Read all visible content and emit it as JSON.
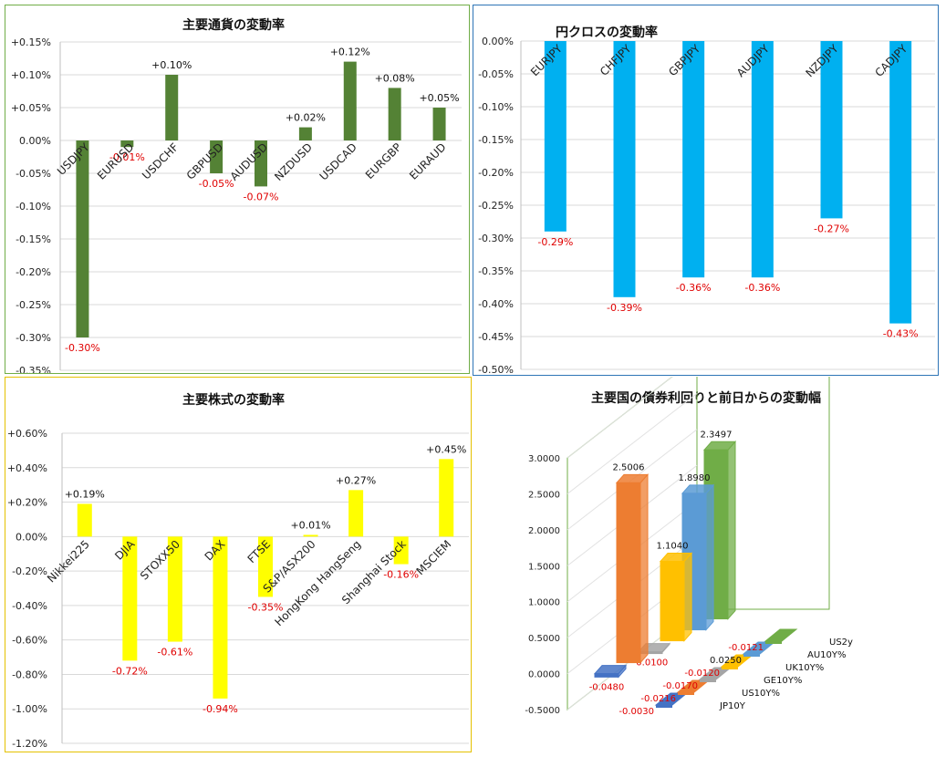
{
  "chart_data": [
    {
      "id": "fx",
      "type": "bar",
      "title": "主要通貨の変動率",
      "categories": [
        "USDJPY",
        "EURUSD",
        "USDCHF",
        "GBPUSD",
        "AUDUSD",
        "NZDUSD",
        "USDCAD",
        "EURGBP",
        "EURAUD"
      ],
      "values": [
        -0.3,
        -0.01,
        0.1,
        -0.05,
        -0.07,
        0.02,
        0.12,
        0.08,
        0.05
      ],
      "data_labels": [
        "-0.30%",
        "-0.01%",
        "+0.10%",
        "-0.05%",
        "-0.07%",
        "+0.02%",
        "+0.12%",
        "+0.08%",
        "+0.05%"
      ],
      "ylim": [
        -0.35,
        0.15
      ],
      "yticks": [
        "+0.15%",
        "+0.10%",
        "+0.05%",
        "0.00%",
        "-0.05%",
        "-0.10%",
        "-0.15%",
        "-0.20%",
        "-0.25%",
        "-0.30%",
        "-0.35%"
      ],
      "grid": true,
      "color": "#548235",
      "border_color": "#548235"
    },
    {
      "id": "yen",
      "type": "bar",
      "title": "円クロスの変動率",
      "categories": [
        "EURJPY",
        "CHFJPY",
        "GBPJPY",
        "AUDJPY",
        "NZDJPY",
        "CADJPY"
      ],
      "values": [
        -0.29,
        -0.39,
        -0.36,
        -0.36,
        -0.27,
        -0.43
      ],
      "data_labels": [
        "-0.29%",
        "-0.39%",
        "-0.36%",
        "-0.36%",
        "-0.27%",
        "-0.43%"
      ],
      "ylim": [
        -0.5,
        0.0
      ],
      "yticks": [
        "0.00%",
        "-0.05%",
        "-0.10%",
        "-0.15%",
        "-0.20%",
        "-0.25%",
        "-0.30%",
        "-0.35%",
        "-0.40%",
        "-0.45%",
        "-0.50%"
      ],
      "grid": true,
      "color": "#00b0f0",
      "border_color": "#2e75b6"
    },
    {
      "id": "stock",
      "type": "bar",
      "title": "主要株式の変動率",
      "categories": [
        "Nikkei225",
        "DJIA",
        "STOXX50",
        "DAX",
        "FTSE",
        "S&P/ASX200",
        "HongKong HangSeng",
        "Shanghai Stock",
        "MSCIEM"
      ],
      "values": [
        0.19,
        -0.72,
        -0.61,
        -0.94,
        -0.35,
        0.01,
        0.27,
        -0.16,
        0.45
      ],
      "data_labels": [
        "+0.19%",
        "-0.72%",
        "-0.61%",
        "-0.94%",
        "-0.35%",
        "+0.01%",
        "+0.27%",
        "-0.16%",
        "+0.45%"
      ],
      "ylim": [
        -1.2,
        0.6
      ],
      "yticks": [
        "+0.60%",
        "+0.40%",
        "+0.20%",
        "0.00%",
        "-0.20%",
        "-0.40%",
        "-0.60%",
        "-0.80%",
        "-1.00%",
        "-1.20%"
      ],
      "grid": true,
      "color": "#ffff00",
      "border_color": "#e5c100"
    },
    {
      "id": "bonds",
      "type": "bar",
      "title": "主要国の債券利回りと前日からの変動幅",
      "series": [
        {
          "name": "JP10Y",
          "level": -0.048,
          "level_label": "-0.0480",
          "change": -0.003,
          "change_label": "-0.0030",
          "color": "#4472c4"
        },
        {
          "name": "US10Y%",
          "level": 2.5006,
          "level_label": "2.5006",
          "change": -0.0216,
          "change_label": "-0.0216",
          "color": "#ed7d31"
        },
        {
          "name": "GE10Y%",
          "level": -0.01,
          "level_label": "-0.0100",
          "change": -0.017,
          "change_label": "-0.0170",
          "color": "#a5a5a5"
        },
        {
          "name": "UK10Y%",
          "level": 1.104,
          "level_label": "1.1040",
          "change": -0.012,
          "change_label": "-0.0120",
          "color": "#ffc000"
        },
        {
          "name": "AU10Y%",
          "level": 1.898,
          "level_label": "1.8980",
          "change": 0.025,
          "change_label": "0.0250",
          "color": "#5b9bd5"
        },
        {
          "name": "US2y",
          "level": 2.3497,
          "level_label": "2.3497",
          "change": -0.0121,
          "change_label": "-0.0121",
          "color": "#70ad47"
        }
      ],
      "ylim": [
        -0.5,
        3.0
      ],
      "yticks": [
        "3.0000",
        "2.5000",
        "2.0000",
        "1.5000",
        "1.0000",
        "0.5000",
        "0.0000",
        "-0.5000"
      ],
      "grid": true
    }
  ]
}
